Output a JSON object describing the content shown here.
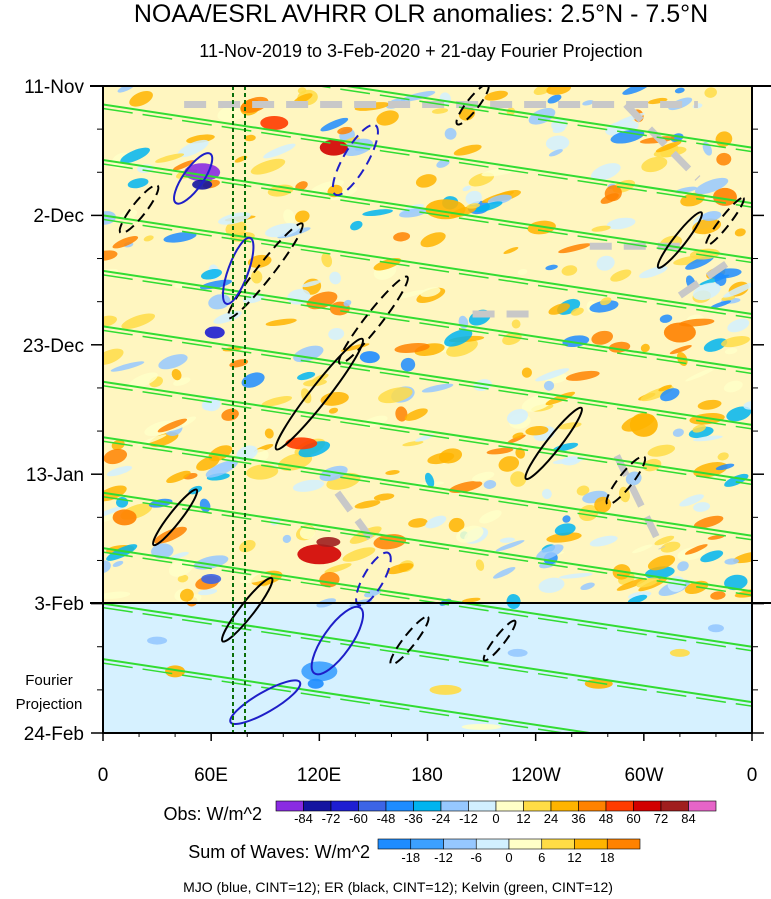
{
  "chart_data": {
    "type": "heatmap",
    "title": "NOAA/ESRL AVHRR OLR anomalies: 2.5°N - 7.5°N",
    "subtitle": "11-Nov-2019 to 3-Feb-2020 + 21-day Fourier Projection",
    "x_ticks": [
      {
        "label": "0",
        "lon": 0
      },
      {
        "label": "60E",
        "lon": 60
      },
      {
        "label": "120E",
        "lon": 120
      },
      {
        "label": "180",
        "lon": 180
      },
      {
        "label": "120W",
        "lon": 240
      },
      {
        "label": "60W",
        "lon": 300
      },
      {
        "label": "0",
        "lon": 360
      }
    ],
    "x_range": [
      0,
      360
    ],
    "y_ticks": [
      {
        "label": "11-Nov",
        "day": 0
      },
      {
        "label": "2-Dec",
        "day": 21
      },
      {
        "label": "23-Dec",
        "day": 42
      },
      {
        "label": "13-Jan",
        "day": 63
      },
      {
        "label": "3-Feb",
        "day": 84
      },
      {
        "label": "24-Feb",
        "day": 105
      }
    ],
    "y_range_days": [
      0,
      105
    ],
    "projection_start_day": 84,
    "projection_label": [
      "Fourier",
      "Projection"
    ],
    "reference_longitudes": [
      72,
      78
    ],
    "colorbars": [
      {
        "label": "Obs: W/m^2",
        "levels": [
          "-84",
          "-72",
          "-60",
          "-48",
          "-36",
          "-24",
          "-12",
          "0",
          "12",
          "24",
          "36",
          "48",
          "60",
          "72",
          "84"
        ],
        "colors": [
          "#8a2be2",
          "#1414a0",
          "#1e1ed2",
          "#3c64e6",
          "#1e8cff",
          "#00b4f0",
          "#96c8ff",
          "#d2f0ff",
          "#ffffc8",
          "#ffdc46",
          "#ffb400",
          "#ff8200",
          "#ff3c00",
          "#d20000",
          "#a01e1e",
          "#e664c8"
        ]
      },
      {
        "label": "Sum of Waves: W/m^2",
        "levels": [
          "-18",
          "-12",
          "-6",
          "0",
          "6",
          "12",
          "18"
        ],
        "colors": [
          "#1e8cff",
          "#3ca0ff",
          "#96c8ff",
          "#d2f0ff",
          "#ffffc8",
          "#ffdc46",
          "#ffb400",
          "#ff8200"
        ]
      }
    ],
    "footer": "MJO (blue, CINT=12); ER (black, CINT=12); Kelvin (green, CINT=12)",
    "wave_colors": {
      "mjo": "#1e1ec8",
      "er": "#000000",
      "kelvin": "#32dc32"
    }
  }
}
